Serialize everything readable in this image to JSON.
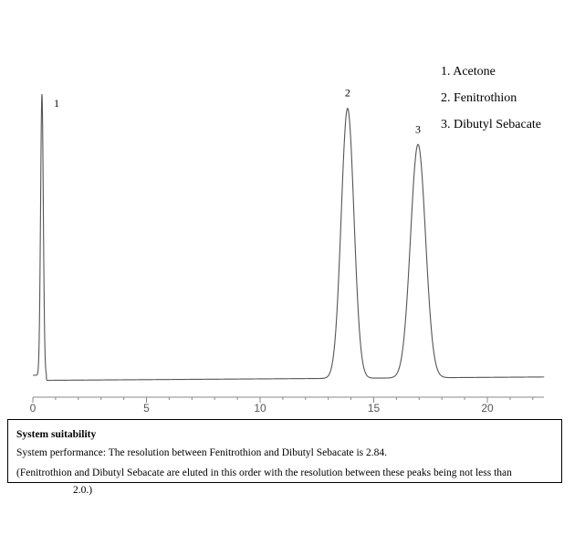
{
  "chart_data": {
    "type": "line",
    "xlabel": "",
    "ylabel": "",
    "xlim": [
      0,
      22.5
    ],
    "ylim": [
      0,
      1
    ],
    "x_ticks": [
      0,
      5,
      10,
      15,
      20
    ],
    "grid": false,
    "peaks": [
      {
        "label": "1",
        "x": 0.4,
        "height": 1.0
      },
      {
        "label": "2",
        "x": 13.85,
        "height": 0.96
      },
      {
        "label": "3",
        "x": 16.95,
        "height": 0.83
      }
    ],
    "legend": {
      "placement": "top-right",
      "items": [
        "1. Acetone",
        "2. Fenitrothion",
        "3. Dibutyl Sebacate"
      ]
    }
  },
  "suitability": {
    "title": "System suitability",
    "line1": "System performance: The resolution between Fenitrothion and Dibutyl Sebacate is 2.84.",
    "line2": "(Fenitrothion and Dibutyl Sebacate are eluted in this order with the resolution between these peaks being not less than",
    "line3": "2.0.)"
  }
}
